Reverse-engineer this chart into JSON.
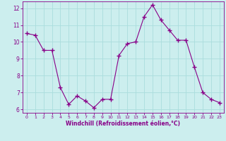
{
  "x": [
    0,
    1,
    2,
    3,
    4,
    5,
    6,
    7,
    8,
    9,
    10,
    11,
    12,
    13,
    14,
    15,
    16,
    17,
    18,
    19,
    20,
    21,
    22,
    23
  ],
  "y": [
    10.5,
    10.4,
    9.5,
    9.5,
    7.3,
    6.3,
    6.8,
    6.5,
    6.1,
    6.6,
    6.6,
    9.2,
    9.9,
    10.0,
    11.5,
    12.2,
    11.3,
    10.7,
    10.1,
    10.1,
    8.5,
    7.0,
    6.6,
    6.4
  ],
  "line_color": "#880088",
  "marker": "+",
  "marker_color": "#880088",
  "bg_color": "#cceeee",
  "grid_color": "#aadddd",
  "xlabel": "Windchill (Refroidissement éolien,°C)",
  "xlabel_color": "#880088",
  "tick_color": "#880088",
  "ylim": [
    5.8,
    12.4
  ],
  "xlim": [
    -0.5,
    23.5
  ],
  "yticks": [
    6,
    7,
    8,
    9,
    10,
    11,
    12
  ],
  "xticks": [
    0,
    1,
    2,
    3,
    4,
    5,
    6,
    7,
    8,
    9,
    10,
    11,
    12,
    13,
    14,
    15,
    16,
    17,
    18,
    19,
    20,
    21,
    22,
    23
  ],
  "spine_color": "#880088"
}
